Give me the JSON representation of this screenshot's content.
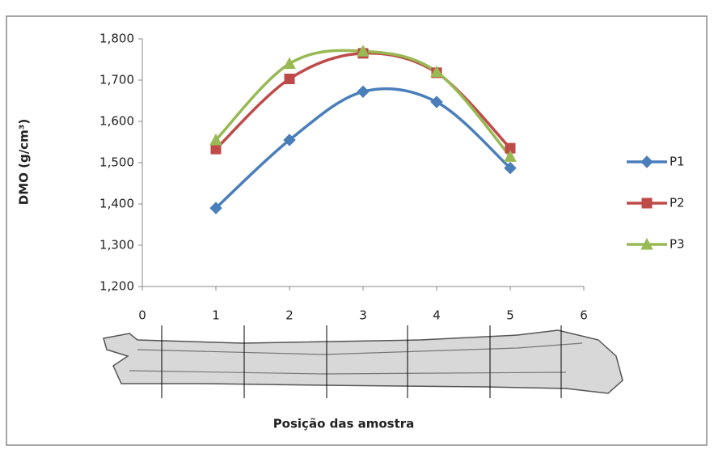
{
  "chart_data": {
    "type": "line",
    "x_label": "Posição das amostra",
    "y_label": "DMO (g/cm³)",
    "x": [
      1,
      2,
      3,
      4,
      5
    ],
    "series": [
      {
        "name": "P1",
        "color": "#4a7ebb",
        "marker": "diamond",
        "values": [
          1.39,
          1.555,
          1.672,
          1.647,
          1.487
        ]
      },
      {
        "name": "P2",
        "color": "#be4b48",
        "marker": "square",
        "values": [
          1.533,
          1.703,
          1.765,
          1.718,
          1.535
        ]
      },
      {
        "name": "P3",
        "color": "#98b954",
        "marker": "triangle",
        "values": [
          1.555,
          1.74,
          1.77,
          1.72,
          1.515
        ]
      }
    ],
    "xlim": [
      0,
      6
    ],
    "xticks": [
      0,
      1,
      2,
      3,
      4,
      5,
      6
    ],
    "ylim": [
      1.2,
      1.8
    ],
    "yticks": [
      {
        "value": 1.2,
        "label": "1,200"
      },
      {
        "value": 1.3,
        "label": "1,300"
      },
      {
        "value": 1.4,
        "label": "1,400"
      },
      {
        "value": 1.5,
        "label": "1,500"
      },
      {
        "value": 1.6,
        "label": "1,600"
      },
      {
        "value": 1.7,
        "label": "1,700"
      },
      {
        "value": 1.8,
        "label": "1,800"
      }
    ],
    "smooth": true,
    "legend": "right"
  }
}
